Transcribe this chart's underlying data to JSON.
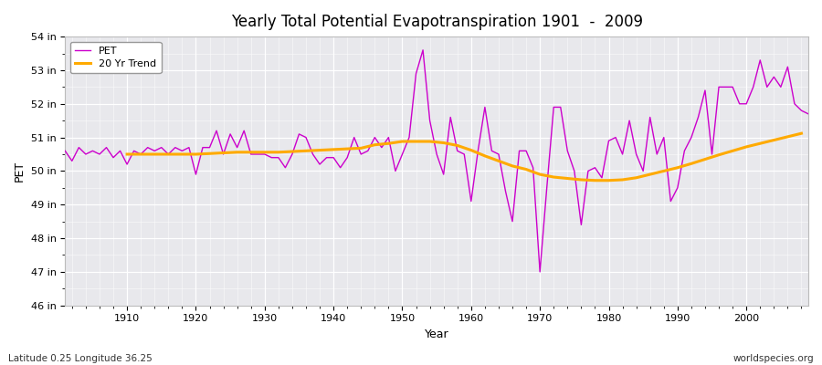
{
  "title": "Yearly Total Potential Evapotranspiration 1901  -  2009",
  "xlabel": "Year",
  "ylabel": "PET",
  "bottom_left_label": "Latitude 0.25 Longitude 36.25",
  "bottom_right_label": "worldspecies.org",
  "pet_color": "#cc00cc",
  "trend_color": "#ffaa00",
  "fig_bg_color": "#ffffff",
  "plot_bg_color": "#e8e8ec",
  "ylim": [
    46,
    54
  ],
  "xlim": [
    1901,
    2009
  ],
  "yticks": [
    46,
    47,
    48,
    49,
    50,
    51,
    52,
    53,
    54
  ],
  "ytick_labels": [
    "46 in",
    "47 in",
    "48 in",
    "49 in",
    "50 in",
    "51 in",
    "52 in",
    "53 in",
    "54 in"
  ],
  "xticks": [
    1910,
    1920,
    1930,
    1940,
    1950,
    1960,
    1970,
    1980,
    1990,
    2000
  ],
  "years": [
    1901,
    1902,
    1903,
    1904,
    1905,
    1906,
    1907,
    1908,
    1909,
    1910,
    1911,
    1912,
    1913,
    1914,
    1915,
    1916,
    1917,
    1918,
    1919,
    1920,
    1921,
    1922,
    1923,
    1924,
    1925,
    1926,
    1927,
    1928,
    1929,
    1930,
    1931,
    1932,
    1933,
    1934,
    1935,
    1936,
    1937,
    1938,
    1939,
    1940,
    1941,
    1942,
    1943,
    1944,
    1945,
    1946,
    1947,
    1948,
    1949,
    1950,
    1951,
    1952,
    1953,
    1954,
    1955,
    1956,
    1957,
    1958,
    1959,
    1960,
    1961,
    1962,
    1963,
    1964,
    1965,
    1966,
    1967,
    1968,
    1969,
    1970,
    1971,
    1972,
    1973,
    1974,
    1975,
    1976,
    1977,
    1978,
    1979,
    1980,
    1981,
    1982,
    1983,
    1984,
    1985,
    1986,
    1987,
    1988,
    1989,
    1990,
    1991,
    1992,
    1993,
    1994,
    1995,
    1996,
    1997,
    1998,
    1999,
    2000,
    2001,
    2002,
    2003,
    2004,
    2005,
    2006,
    2007,
    2008,
    2009
  ],
  "pet_values": [
    50.6,
    50.3,
    50.7,
    50.5,
    50.6,
    50.5,
    50.7,
    50.4,
    50.6,
    50.2,
    50.6,
    50.5,
    50.7,
    50.6,
    50.7,
    50.5,
    50.7,
    50.6,
    50.7,
    49.9,
    50.7,
    50.7,
    51.2,
    50.5,
    51.1,
    50.7,
    51.2,
    50.5,
    50.5,
    50.5,
    50.4,
    50.4,
    50.1,
    50.5,
    51.1,
    51.0,
    50.5,
    50.2,
    50.4,
    50.4,
    50.1,
    50.4,
    51.0,
    50.5,
    50.6,
    51.0,
    50.7,
    51.0,
    50.0,
    50.5,
    51.0,
    52.9,
    53.6,
    51.5,
    50.5,
    49.9,
    51.6,
    50.6,
    50.5,
    49.1,
    50.6,
    51.9,
    50.6,
    50.5,
    49.4,
    48.5,
    50.6,
    50.6,
    50.1,
    47.0,
    49.5,
    51.9,
    51.9,
    50.6,
    50.0,
    48.4,
    50.0,
    50.1,
    49.8,
    50.9,
    51.0,
    50.5,
    51.5,
    50.5,
    50.0,
    51.6,
    50.5,
    51.0,
    49.1,
    49.5,
    50.6,
    51.0,
    51.6,
    52.4,
    50.5,
    52.5,
    52.5,
    52.5,
    52.0,
    52.0,
    52.5,
    53.3,
    52.5,
    52.8,
    52.5,
    53.1,
    52.0,
    51.8,
    51.7
  ],
  "trend_years": [
    1910,
    1912,
    1914,
    1916,
    1918,
    1920,
    1922,
    1924,
    1926,
    1928,
    1930,
    1932,
    1934,
    1936,
    1938,
    1940,
    1942,
    1944,
    1946,
    1948,
    1950,
    1952,
    1954,
    1956,
    1958,
    1960,
    1962,
    1964,
    1966,
    1968,
    1970,
    1972,
    1974,
    1976,
    1978,
    1980,
    1982,
    1984,
    1986,
    1988,
    1990,
    1992,
    1994,
    1996,
    1998,
    2000,
    2002,
    2004,
    2006,
    2008
  ],
  "trend_values": [
    50.5,
    50.5,
    50.5,
    50.5,
    50.5,
    50.5,
    50.52,
    50.54,
    50.56,
    50.56,
    50.56,
    50.56,
    50.58,
    50.6,
    50.62,
    50.64,
    50.66,
    50.68,
    50.78,
    50.82,
    50.88,
    50.88,
    50.88,
    50.84,
    50.76,
    50.62,
    50.45,
    50.3,
    50.15,
    50.05,
    49.9,
    49.82,
    49.78,
    49.74,
    49.72,
    49.72,
    49.74,
    49.8,
    49.9,
    50.0,
    50.1,
    50.22,
    50.35,
    50.48,
    50.6,
    50.72,
    50.82,
    50.92,
    51.02,
    51.12
  ]
}
